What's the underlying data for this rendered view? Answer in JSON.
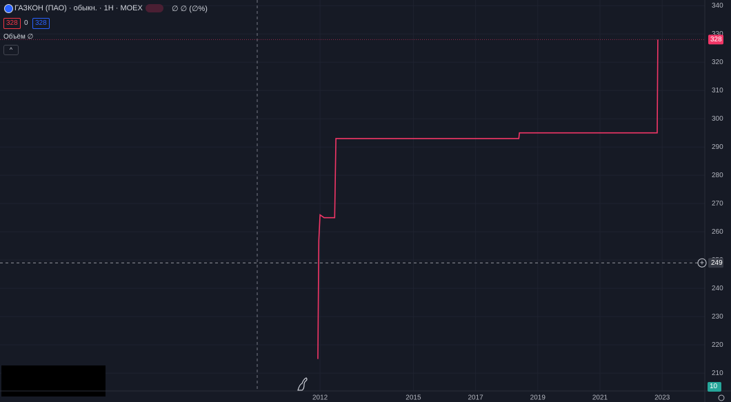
{
  "legend": {
    "symbol": "ГАЗКОН (ПАО) · обыкн. · 1H · MOEX",
    "change": "∅ ∅ (∅%)",
    "bid": "328",
    "spread": "0",
    "ask": "328",
    "volume_label": "Объём ∅",
    "volume_last": "10"
  },
  "chart_data": {
    "type": "line",
    "x": [
      2011.93,
      2011.96,
      2012.0,
      2012.13,
      2012.47,
      2012.51,
      2013.4,
      2018.39,
      2018.41,
      2022.84,
      2022.86
    ],
    "series": [
      {
        "color": "#f23667",
        "values": [
          215,
          257,
          266,
          265,
          265,
          293,
          293,
          293,
          295,
          295,
          328
        ]
      }
    ],
    "xlim": [
      2001.71,
      2024.37
    ],
    "xticks": [
      2012,
      2015,
      2017,
      2019,
      2021,
      2023
    ],
    "ylim": [
      203.7,
      342
    ],
    "yticks": [
      210,
      220,
      230,
      240,
      250,
      260,
      270,
      280,
      290,
      300,
      310,
      320,
      330,
      340
    ],
    "crosshair_value": 249,
    "grid": true
  }
}
